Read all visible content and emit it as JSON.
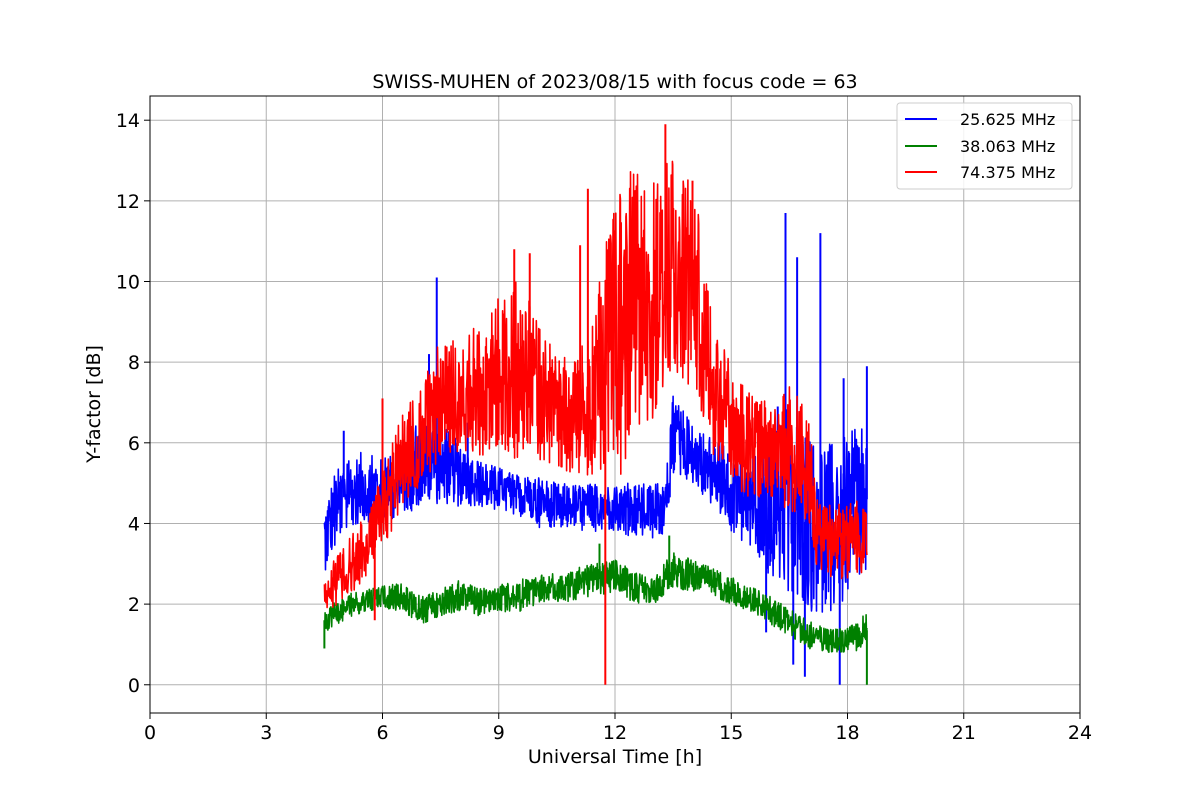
{
  "chart_data": {
    "type": "line",
    "title": "SWISS-MUHEN of 2023/08/15 with focus code = 63",
    "xlabel": "Universal Time [h]",
    "ylabel": "Y-factor [dB]",
    "xlim": [
      0,
      24
    ],
    "ylim": [
      -0.7,
      14.6
    ],
    "xticks": [
      "0",
      "3",
      "6",
      "9",
      "12",
      "15",
      "18",
      "21",
      "24"
    ],
    "yticks": [
      "0",
      "2",
      "4",
      "6",
      "8",
      "10",
      "12",
      "14"
    ],
    "grid": true,
    "legend_position": "top-right",
    "series": [
      {
        "name": "25.625 MHz",
        "color": "#0000ff",
        "x": [
          4.5,
          4.75,
          5.0,
          5.5,
          6.0,
          6.5,
          7.0,
          7.5,
          8.0,
          8.5,
          9.0,
          9.5,
          10.0,
          10.5,
          11.0,
          11.5,
          12.0,
          12.5,
          13.0,
          13.3,
          13.5,
          14.0,
          14.5,
          15.0,
          15.5,
          16.0,
          16.5,
          17.0,
          17.5,
          18.0,
          18.5
        ],
        "lo": [
          2.8,
          3.2,
          3.8,
          4.0,
          4.0,
          4.2,
          4.4,
          4.5,
          4.4,
          4.4,
          4.3,
          4.2,
          3.9,
          3.9,
          3.8,
          3.8,
          3.8,
          3.6,
          3.6,
          3.7,
          5.2,
          5.0,
          4.4,
          3.8,
          3.2,
          2.6,
          2.2,
          1.6,
          1.8,
          2.0,
          2.6
        ],
        "hi": [
          4.5,
          5.3,
          5.5,
          5.8,
          5.6,
          6.0,
          6.8,
          6.5,
          6.0,
          5.6,
          5.4,
          5.2,
          5.2,
          5.0,
          5.0,
          5.0,
          5.0,
          5.0,
          5.0,
          5.2,
          7.2,
          6.5,
          6.2,
          6.0,
          5.6,
          6.2,
          7.0,
          6.2,
          6.0,
          6.2,
          6.6
        ],
        "spikes": [
          [
            5.0,
            6.3
          ],
          [
            7.4,
            10.1
          ],
          [
            7.2,
            8.2
          ],
          [
            8.2,
            6.5
          ],
          [
            16.4,
            11.7
          ],
          [
            16.2,
            6.9
          ],
          [
            16.7,
            10.6
          ],
          [
            17.3,
            11.2
          ],
          [
            18.5,
            7.9
          ],
          [
            17.9,
            7.6
          ],
          [
            16.6,
            0.5
          ],
          [
            16.9,
            0.2
          ],
          [
            17.8,
            0.0
          ],
          [
            15.9,
            1.3
          ]
        ]
      },
      {
        "name": "38.063 MHz",
        "color": "#008000",
        "x": [
          4.5,
          5.0,
          5.5,
          6.0,
          6.5,
          7.0,
          7.5,
          8.0,
          8.5,
          9.0,
          9.5,
          10.0,
          10.5,
          11.0,
          11.5,
          12.0,
          12.5,
          13.0,
          13.5,
          14.0,
          14.5,
          15.0,
          15.5,
          16.0,
          16.5,
          17.0,
          17.5,
          18.0,
          18.5
        ],
        "lo": [
          1.3,
          1.6,
          1.8,
          1.9,
          1.8,
          1.5,
          1.7,
          1.8,
          1.7,
          1.8,
          1.8,
          2.0,
          2.0,
          2.1,
          2.2,
          2.3,
          2.0,
          2.0,
          2.4,
          2.3,
          2.2,
          2.0,
          1.8,
          1.5,
          1.2,
          0.9,
          0.8,
          0.8,
          0.9
        ],
        "hi": [
          1.9,
          2.2,
          2.4,
          2.5,
          2.5,
          2.2,
          2.4,
          2.6,
          2.4,
          2.5,
          2.6,
          2.7,
          2.8,
          2.9,
          3.0,
          3.1,
          2.8,
          2.7,
          3.3,
          3.1,
          2.9,
          2.7,
          2.5,
          2.2,
          1.9,
          1.6,
          1.4,
          1.4,
          1.8
        ],
        "spikes": [
          [
            13.4,
            3.7
          ],
          [
            11.6,
            3.5
          ],
          [
            4.5,
            0.9
          ],
          [
            18.5,
            0.0
          ]
        ]
      },
      {
        "name": "74.375 MHz",
        "color": "#ff0000",
        "x": [
          4.5,
          5.0,
          5.5,
          6.0,
          6.5,
          7.0,
          7.5,
          8.0,
          8.5,
          9.0,
          9.5,
          10.0,
          10.5,
          11.0,
          11.5,
          12.0,
          12.5,
          13.0,
          13.5,
          14.0,
          14.5,
          15.0,
          15.5,
          16.0,
          16.5,
          17.0,
          17.2,
          17.5,
          18.0,
          18.5
        ],
        "lo": [
          1.8,
          2.0,
          2.6,
          3.3,
          4.3,
          5.0,
          5.6,
          5.7,
          5.6,
          5.6,
          5.6,
          5.5,
          5.4,
          5.2,
          5.2,
          5.1,
          5.4,
          6.6,
          7.8,
          7.0,
          5.6,
          5.0,
          4.6,
          4.6,
          4.3,
          4.0,
          2.9,
          2.7,
          2.6,
          2.8
        ],
        "hi": [
          2.8,
          3.4,
          4.2,
          5.2,
          6.8,
          7.5,
          8.6,
          8.6,
          9.0,
          9.6,
          10.2,
          9.2,
          8.2,
          8.0,
          9.5,
          12.5,
          12.8,
          12.8,
          13.3,
          12.4,
          10.0,
          7.8,
          7.2,
          7.0,
          7.5,
          6.8,
          4.6,
          4.5,
          4.6,
          4.5
        ],
        "spikes": [
          [
            11.3,
            12.3
          ],
          [
            13.3,
            13.9
          ],
          [
            9.4,
            10.8
          ],
          [
            5.8,
            1.6
          ],
          [
            11.75,
            0.0
          ],
          [
            9.8,
            10.7
          ],
          [
            14.0,
            12.5
          ],
          [
            11.1,
            10.9
          ],
          [
            6.0,
            7.1
          ]
        ]
      }
    ]
  }
}
